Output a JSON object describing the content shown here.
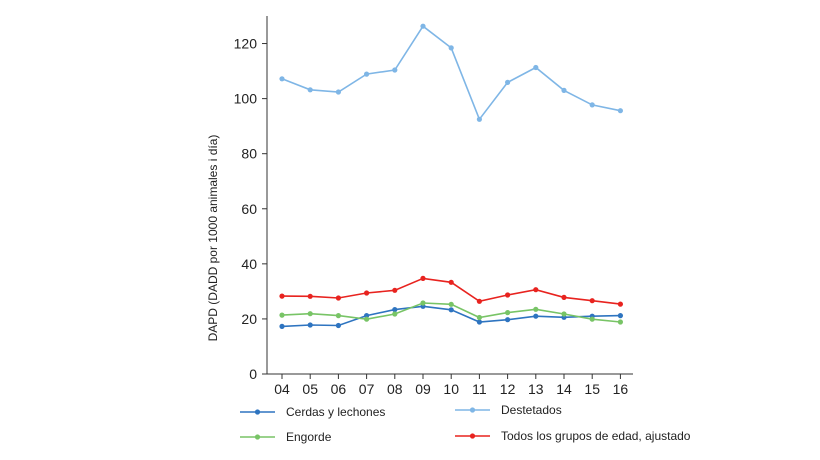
{
  "chart_data": {
    "type": "line",
    "ylabel": "DAPD (DADD por 1000 animales i día)",
    "xlabel": "",
    "categories": [
      "04",
      "05",
      "06",
      "07",
      "08",
      "09",
      "10",
      "11",
      "12",
      "13",
      "14",
      "15",
      "16"
    ],
    "ylim": [
      0,
      130
    ],
    "yticks": [
      0,
      20,
      40,
      60,
      80,
      100,
      120
    ],
    "grid": false,
    "legend_position": "bottom",
    "series": [
      {
        "name": "Cerdas y lechones",
        "color": "#2e74c0",
        "values": [
          17.3,
          17.8,
          17.6,
          21.2,
          23.4,
          24.6,
          23.3,
          18.9,
          19.7,
          21.0,
          20.6,
          21.0,
          21.2
        ]
      },
      {
        "name": "Destetados",
        "color": "#7fb6e6",
        "values": [
          107.2,
          103.2,
          102.4,
          108.9,
          110.4,
          126.3,
          118.4,
          92.5,
          105.9,
          111.3,
          103.0,
          97.7,
          95.6
        ]
      },
      {
        "name": "Engorde",
        "color": "#78c466",
        "values": [
          21.4,
          21.9,
          21.2,
          19.9,
          21.8,
          25.8,
          25.3,
          20.5,
          22.3,
          23.5,
          21.8,
          19.9,
          18.9
        ]
      },
      {
        "name": "Todos los grupos de edad, ajustado",
        "color": "#e8231f",
        "values": [
          28.3,
          28.2,
          27.6,
          29.4,
          30.4,
          34.7,
          33.3,
          26.4,
          28.7,
          30.6,
          27.8,
          26.6,
          25.4
        ]
      }
    ]
  }
}
